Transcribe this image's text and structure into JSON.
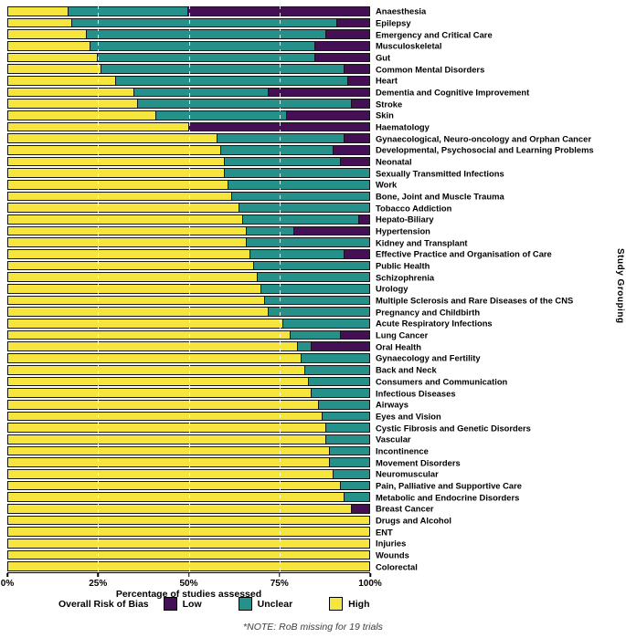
{
  "chart_data": {
    "type": "bar",
    "orientation": "horizontal",
    "stacked": true,
    "percent_stacked": true,
    "xlabel": "Percentage of studies assessed",
    "ylabel": "Study Grouping",
    "legend_title": "Overall Risk of Bias",
    "legend": [
      {
        "label": "Low",
        "color": "#440f54"
      },
      {
        "label": "Unclear",
        "color": "#26918b"
      },
      {
        "label": "High",
        "color": "#f5e53c"
      }
    ],
    "note": "*NOTE: RoB missing for 19 trials",
    "xlim": [
      0,
      100
    ],
    "x_ticks": [
      {
        "label": "0%",
        "pos": 0
      },
      {
        "label": "25%",
        "pos": 25
      },
      {
        "label": "50%",
        "pos": 50
      },
      {
        "label": "75%",
        "pos": 75
      },
      {
        "label": "100%",
        "pos": 100
      }
    ],
    "gridlines": [
      25,
      50,
      75
    ],
    "grid_style": "dashed-vertical",
    "categories": [
      "Anaesthesia",
      "Epilepsy",
      "Emergency and Critical Care",
      "Musculoskeletal",
      "Gut",
      "Common Mental Disorders",
      "Heart",
      "Dementia and Cognitive Improvement",
      "Stroke",
      "Skin",
      "Haematology",
      "Gynaecological, Neuro-oncology and Orphan Cancer",
      "Developmental, Psychosocial and Learning Problems",
      "Neonatal",
      "Sexually Transmitted Infections",
      "Work",
      "Bone, Joint and Muscle Trauma",
      "Tobacco Addiction",
      "Hepato-Biliary",
      "Hypertension",
      "Kidney and Transplant",
      "Effective Practice and Organisation of Care",
      "Public Health",
      "Schizophrenia",
      "Urology",
      "Multiple Sclerosis and Rare Diseases of the CNS",
      "Pregnancy and Childbirth",
      "Acute Respiratory Infections",
      "Lung Cancer",
      "Oral Health",
      "Gynaecology and Fertility",
      "Back and Neck",
      "Consumers and Communication",
      "Infectious Diseases",
      "Airways",
      "Eyes and Vision",
      "Cystic Fibrosis and Genetic Disorders",
      "Vascular",
      "Incontinence",
      "Movement Disorders",
      "Neuromuscular",
      "Pain, Palliative and Supportive Care",
      "Metabolic and Endocrine Disorders",
      "Breast Cancer",
      "Drugs and Alcohol",
      "ENT",
      "Injuries",
      "Wounds",
      "Colorectal"
    ],
    "series": [
      {
        "name": "High",
        "color": "#f5e53c",
        "values": [
          17,
          18,
          22,
          23,
          25,
          26,
          30,
          35,
          36,
          41,
          50,
          58,
          59,
          60,
          60,
          61,
          62,
          64,
          65,
          66,
          66,
          67,
          68,
          69,
          70,
          71,
          72,
          76,
          78,
          80,
          81,
          82,
          83,
          84,
          86,
          87,
          88,
          88,
          89,
          89,
          90,
          92,
          93,
          95,
          100,
          100,
          100,
          100,
          100
        ]
      },
      {
        "name": "Unclear",
        "color": "#26918b",
        "values": [
          33,
          73,
          66,
          62,
          60,
          67,
          64,
          37,
          59,
          36,
          0,
          35,
          31,
          32,
          40,
          39,
          38,
          36,
          32,
          13,
          34,
          26,
          32,
          31,
          30,
          29,
          28,
          24,
          14,
          4,
          19,
          18,
          17,
          16,
          14,
          13,
          12,
          12,
          11,
          11,
          10,
          8,
          7,
          0,
          0,
          0,
          0,
          0,
          0
        ]
      },
      {
        "name": "Low",
        "color": "#440f54",
        "values": [
          50,
          9,
          12,
          15,
          15,
          7,
          6,
          28,
          5,
          23,
          50,
          7,
          10,
          8,
          0,
          0,
          0,
          0,
          3,
          21,
          0,
          7,
          0,
          0,
          0,
          0,
          0,
          0,
          8,
          16,
          0,
          0,
          0,
          0,
          0,
          0,
          0,
          0,
          0,
          0,
          0,
          0,
          0,
          5,
          0,
          0,
          0,
          0,
          0
        ]
      }
    ]
  }
}
